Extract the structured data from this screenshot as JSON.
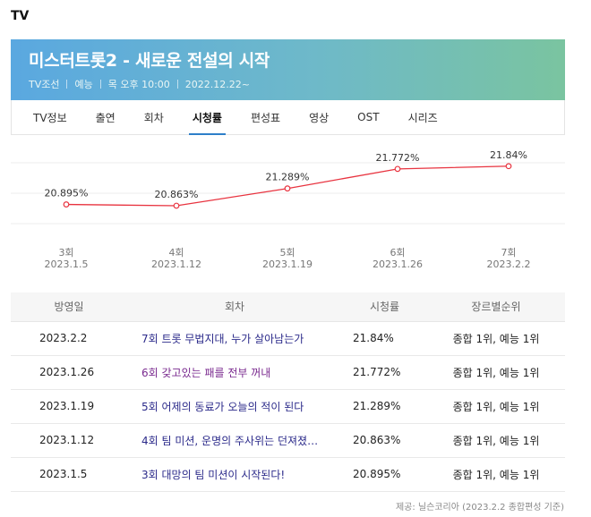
{
  "section": {
    "label": "TV"
  },
  "banner": {
    "title": "미스터트롯2 - 새로운 전설의 시작",
    "channel": "TV조선",
    "genre": "예능",
    "schedule": "목 오후 10:00",
    "start_date": "2022.12.22~",
    "gradient_start": "#5aa8e0",
    "gradient_end": "#7ac4a0"
  },
  "tabs": [
    {
      "label": "TV정보",
      "active": false
    },
    {
      "label": "출연",
      "active": false
    },
    {
      "label": "회차",
      "active": false
    },
    {
      "label": "시청률",
      "active": true
    },
    {
      "label": "편성표",
      "active": false
    },
    {
      "label": "영상",
      "active": false
    },
    {
      "label": "OST",
      "active": false
    },
    {
      "label": "시리즈",
      "active": false
    }
  ],
  "chart_data": {
    "type": "line",
    "title": "",
    "xlabel": "",
    "ylabel": "",
    "line_color": "#e8333f",
    "grid": true,
    "categories": [
      {
        "episode": "3회",
        "date": "2023.1.5"
      },
      {
        "episode": "4회",
        "date": "2023.1.12"
      },
      {
        "episode": "5회",
        "date": "2023.1.19"
      },
      {
        "episode": "6회",
        "date": "2023.1.26"
      },
      {
        "episode": "7회",
        "date": "2023.2.2"
      }
    ],
    "values": [
      20.895,
      20.863,
      21.289,
      21.772,
      21.84
    ],
    "labels": [
      "20.895%",
      "20.863%",
      "21.289%",
      "21.772%",
      "21.84%"
    ],
    "ylim": [
      20.2,
      22.1
    ]
  },
  "table": {
    "headers": {
      "date": "방영일",
      "episode": "회차",
      "rating": "시청률",
      "rank": "장르별순위"
    },
    "rows": [
      {
        "date": "2023.2.2",
        "episode": "7회 트롯 무법지대, 누가 살아남는가",
        "rating": "21.84%",
        "rank": "종합 1위, 예능 1위"
      },
      {
        "date": "2023.1.26",
        "episode": "6회 갖고있는 패를 전부 꺼내",
        "rating": "21.772%",
        "rank": "종합 1위, 예능 1위"
      },
      {
        "date": "2023.1.19",
        "episode": "5회 어제의 동료가 오늘의 적이 된다",
        "rating": "21.289%",
        "rank": "종합 1위, 예능 1위"
      },
      {
        "date": "2023.1.12",
        "episode": "4회 팀 미션, 운명의 주사위는 던져졌…",
        "rating": "20.863%",
        "rank": "종합 1위, 예능 1위"
      },
      {
        "date": "2023.1.5",
        "episode": "3회 대망의 팀 미션이 시작된다!",
        "rating": "20.895%",
        "rank": "종합 1위, 예능 1위"
      }
    ]
  },
  "source": {
    "text": "제공: 닐슨코리아 (2023.2.2 종합편성 기준)"
  }
}
